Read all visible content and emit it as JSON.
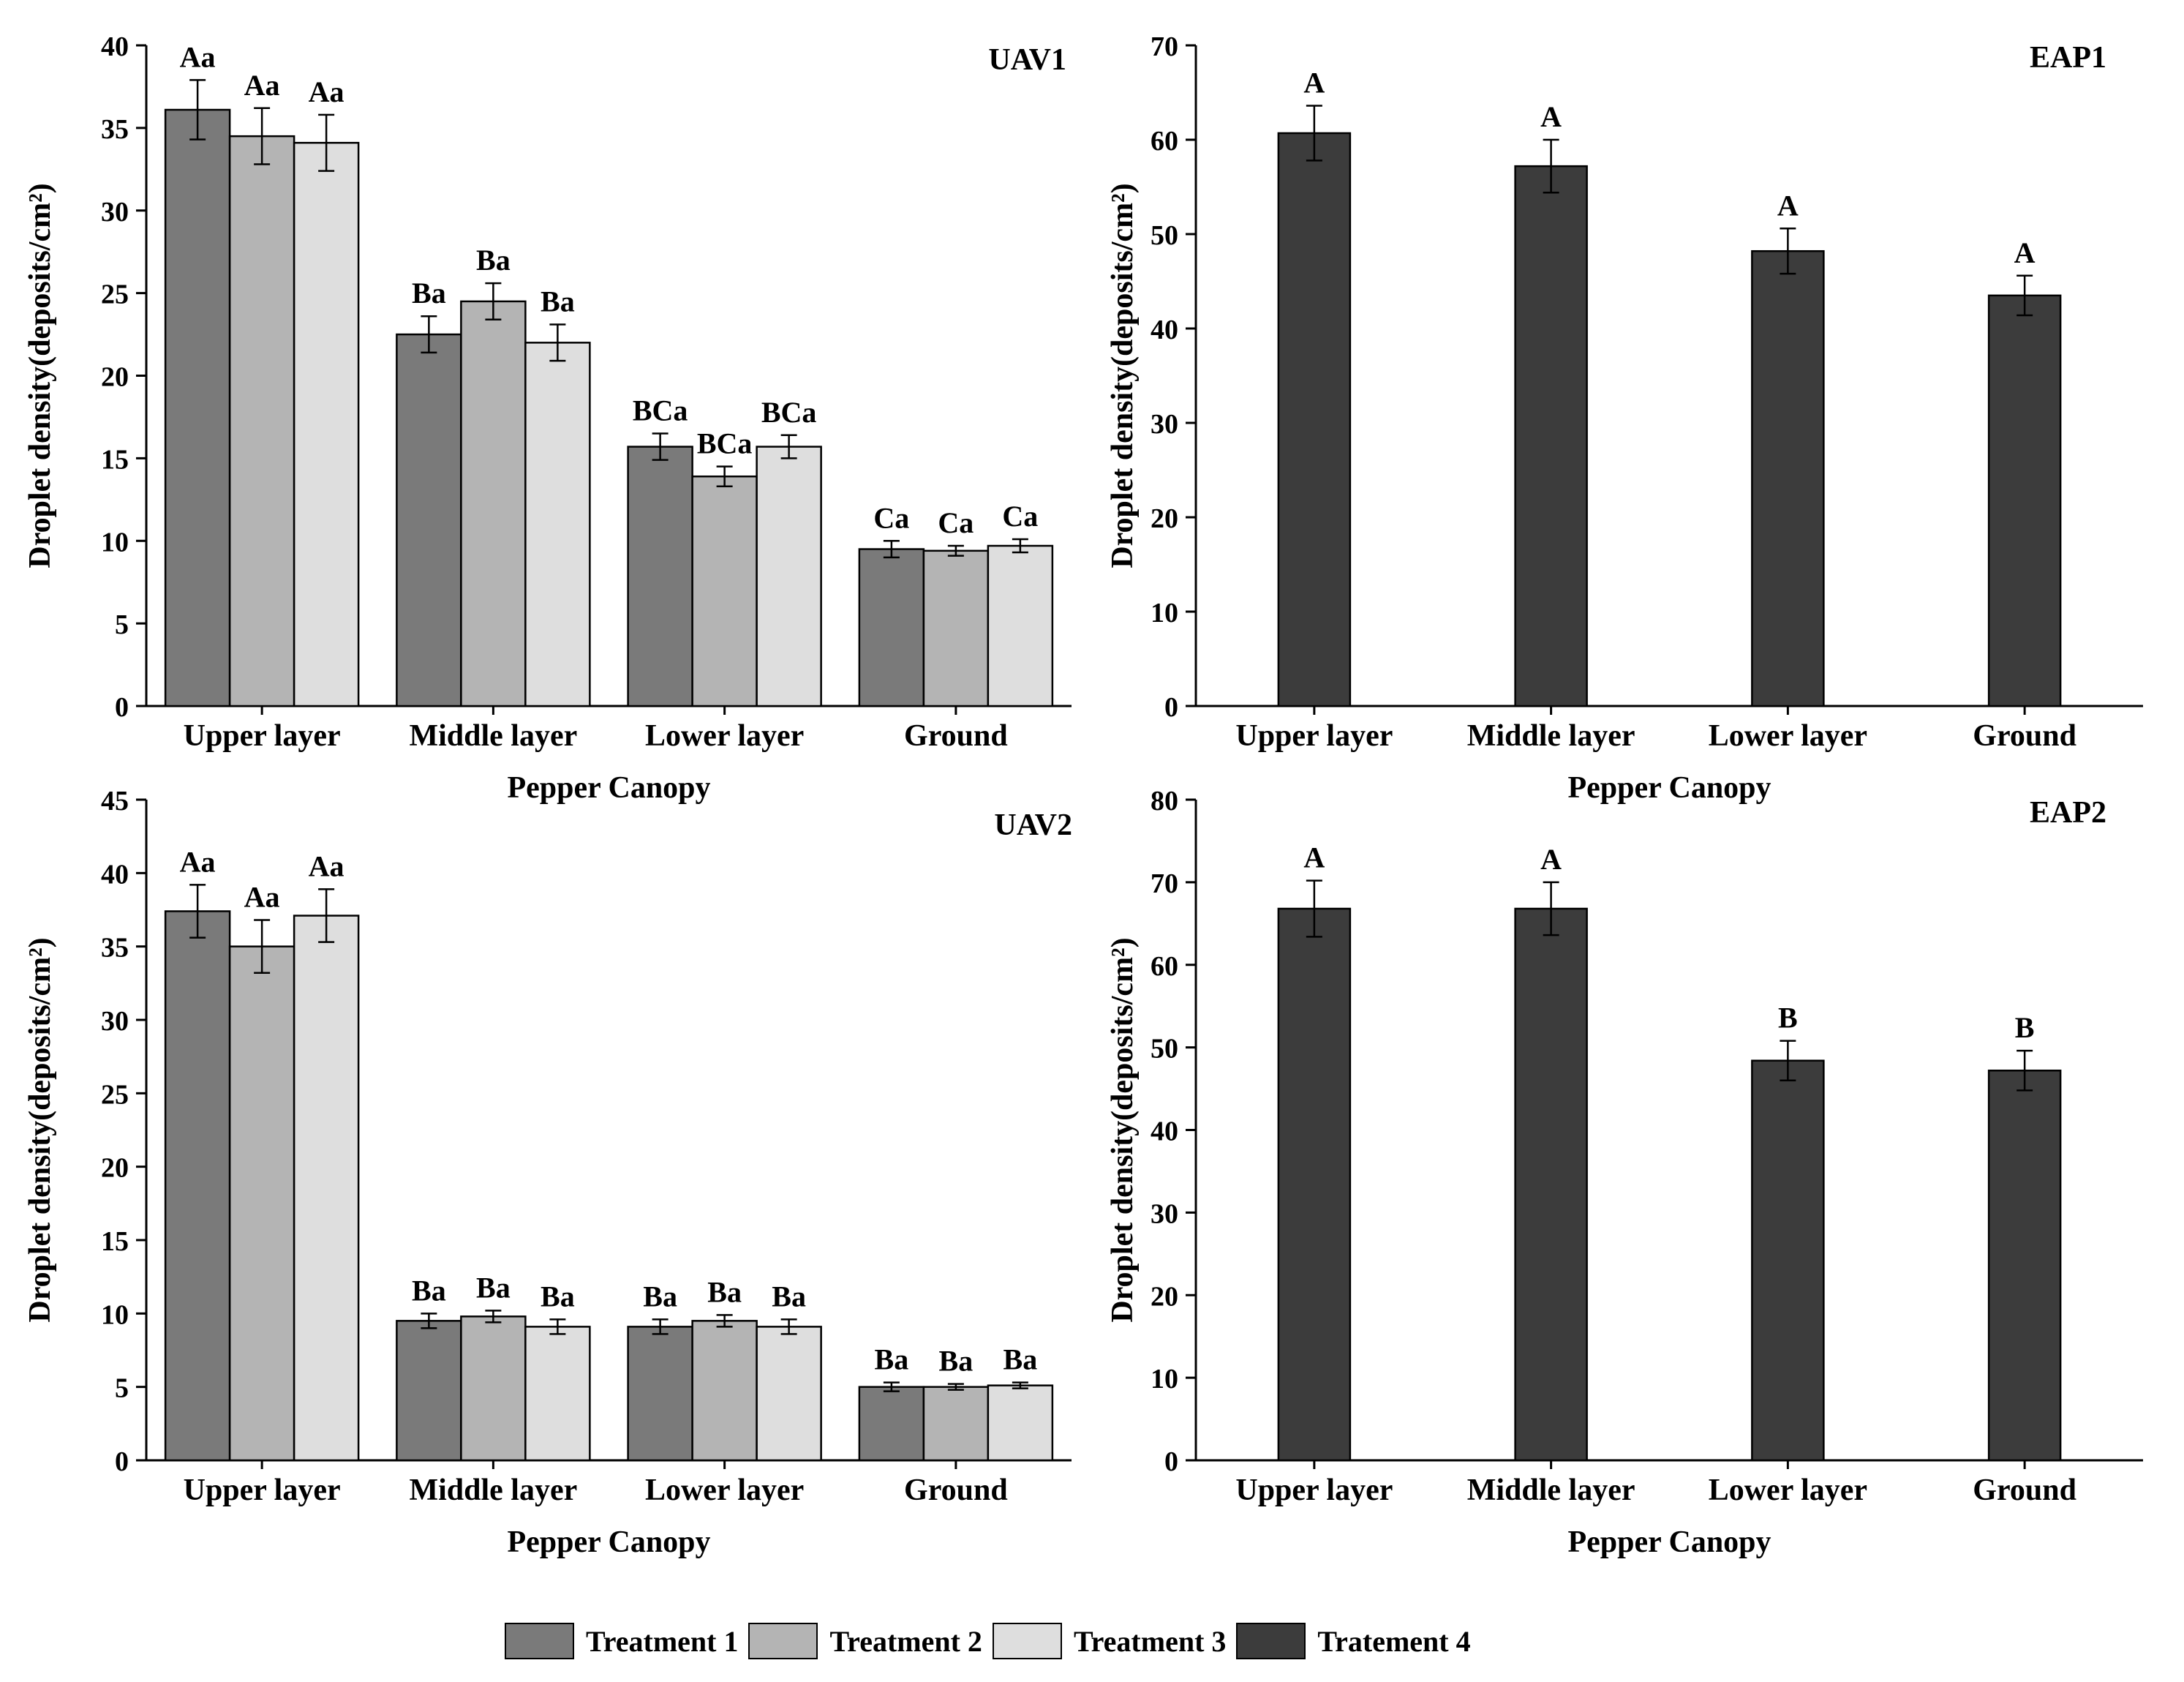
{
  "colors": {
    "treatment_1": "#7a7a7a",
    "treatment_2": "#b4b4b4",
    "treatment_3": "#dedede",
    "treatment_4": "#3c3c3c",
    "bar_outline": "#000000"
  },
  "legend": {
    "items": [
      {
        "label": "Treatment 1",
        "color": "#7a7a7a"
      },
      {
        "label": "Treatment 2",
        "color": "#b4b4b4"
      },
      {
        "label": "Treatment 3",
        "color": "#dedede"
      },
      {
        "label": "Tratement 4",
        "color": "#3c3c3c"
      }
    ]
  },
  "chart_data": [
    {
      "type": "bar",
      "title": "UAV1",
      "xlabel": "Pepper Canopy",
      "ylabel": "Droplet density(deposits/cm²)",
      "categories": [
        "Upper layer",
        "Middle layer",
        "Lower layer",
        "Ground"
      ],
      "ylim": [
        0,
        40
      ],
      "yticks": [
        0,
        5,
        10,
        15,
        20,
        25,
        30,
        35,
        40
      ],
      "series": [
        {
          "name": "Treatment 1",
          "values": [
            36.1,
            22.5,
            15.7,
            9.5
          ],
          "errors": [
            1.8,
            1.1,
            0.8,
            0.5
          ],
          "labels": [
            "Aa",
            "Ba",
            "BCa",
            "Ca"
          ]
        },
        {
          "name": "Treatment 2",
          "values": [
            34.5,
            24.5,
            13.9,
            9.4
          ],
          "errors": [
            1.7,
            1.1,
            0.6,
            0.3
          ],
          "labels": [
            "Aa",
            "Ba",
            "BCa",
            "Ca"
          ]
        },
        {
          "name": "Treatment 3",
          "values": [
            34.1,
            22.0,
            15.7,
            9.7
          ],
          "errors": [
            1.7,
            1.1,
            0.7,
            0.4
          ],
          "labels": [
            "Aa",
            "Ba",
            "BCa",
            "Ca"
          ]
        }
      ]
    },
    {
      "type": "bar",
      "title": "EAP1",
      "xlabel": "Pepper Canopy",
      "ylabel": "Droplet density(deposits/cm²)",
      "categories": [
        "Upper layer",
        "Middle layer",
        "Lower layer",
        "Ground"
      ],
      "ylim": [
        0,
        70
      ],
      "yticks": [
        0,
        10,
        20,
        30,
        40,
        50,
        60,
        70
      ],
      "series": [
        {
          "name": "Tratement 4",
          "values": [
            60.7,
            57.2,
            48.2,
            43.5
          ],
          "errors": [
            2.9,
            2.8,
            2.4,
            2.1
          ],
          "labels": [
            "A",
            "A",
            "A",
            "A"
          ]
        }
      ]
    },
    {
      "type": "bar",
      "title": "UAV2",
      "xlabel": "Pepper Canopy",
      "ylabel": "Droplet density(deposits/cm²)",
      "categories": [
        "Upper layer",
        "Middle layer",
        "Lower layer",
        "Ground"
      ],
      "ylim": [
        0,
        45
      ],
      "yticks": [
        0,
        5,
        10,
        15,
        20,
        25,
        30,
        35,
        40,
        45
      ],
      "series": [
        {
          "name": "Treatment 1",
          "values": [
            37.4,
            9.5,
            9.1,
            5.0
          ],
          "errors": [
            1.8,
            0.5,
            0.5,
            0.3
          ],
          "labels": [
            "Aa",
            "Ba",
            "Ba",
            "Ba"
          ]
        },
        {
          "name": "Treatment 2",
          "values": [
            35.0,
            9.8,
            9.5,
            5.0
          ],
          "errors": [
            1.8,
            0.4,
            0.4,
            0.2
          ],
          "labels": [
            "Aa",
            "Ba",
            "Ba",
            "Ba"
          ]
        },
        {
          "name": "Treatment 3",
          "values": [
            37.1,
            9.1,
            9.1,
            5.1
          ],
          "errors": [
            1.8,
            0.5,
            0.5,
            0.2
          ],
          "labels": [
            "Aa",
            "Ba",
            "Ba",
            "Ba"
          ]
        }
      ]
    },
    {
      "type": "bar",
      "title": "EAP2",
      "xlabel": "Pepper Canopy",
      "ylabel": "Droplet density(deposits/cm²)",
      "categories": [
        "Upper layer",
        "Middle layer",
        "Lower layer",
        "Ground"
      ],
      "ylim": [
        0,
        80
      ],
      "yticks": [
        0,
        10,
        20,
        30,
        40,
        50,
        60,
        70,
        80
      ],
      "series": [
        {
          "name": "Tratement 4",
          "values": [
            66.8,
            66.8,
            48.4,
            47.2
          ],
          "errors": [
            3.4,
            3.2,
            2.4,
            2.4
          ],
          "labels": [
            "A",
            "A",
            "B",
            "B"
          ]
        }
      ]
    }
  ]
}
